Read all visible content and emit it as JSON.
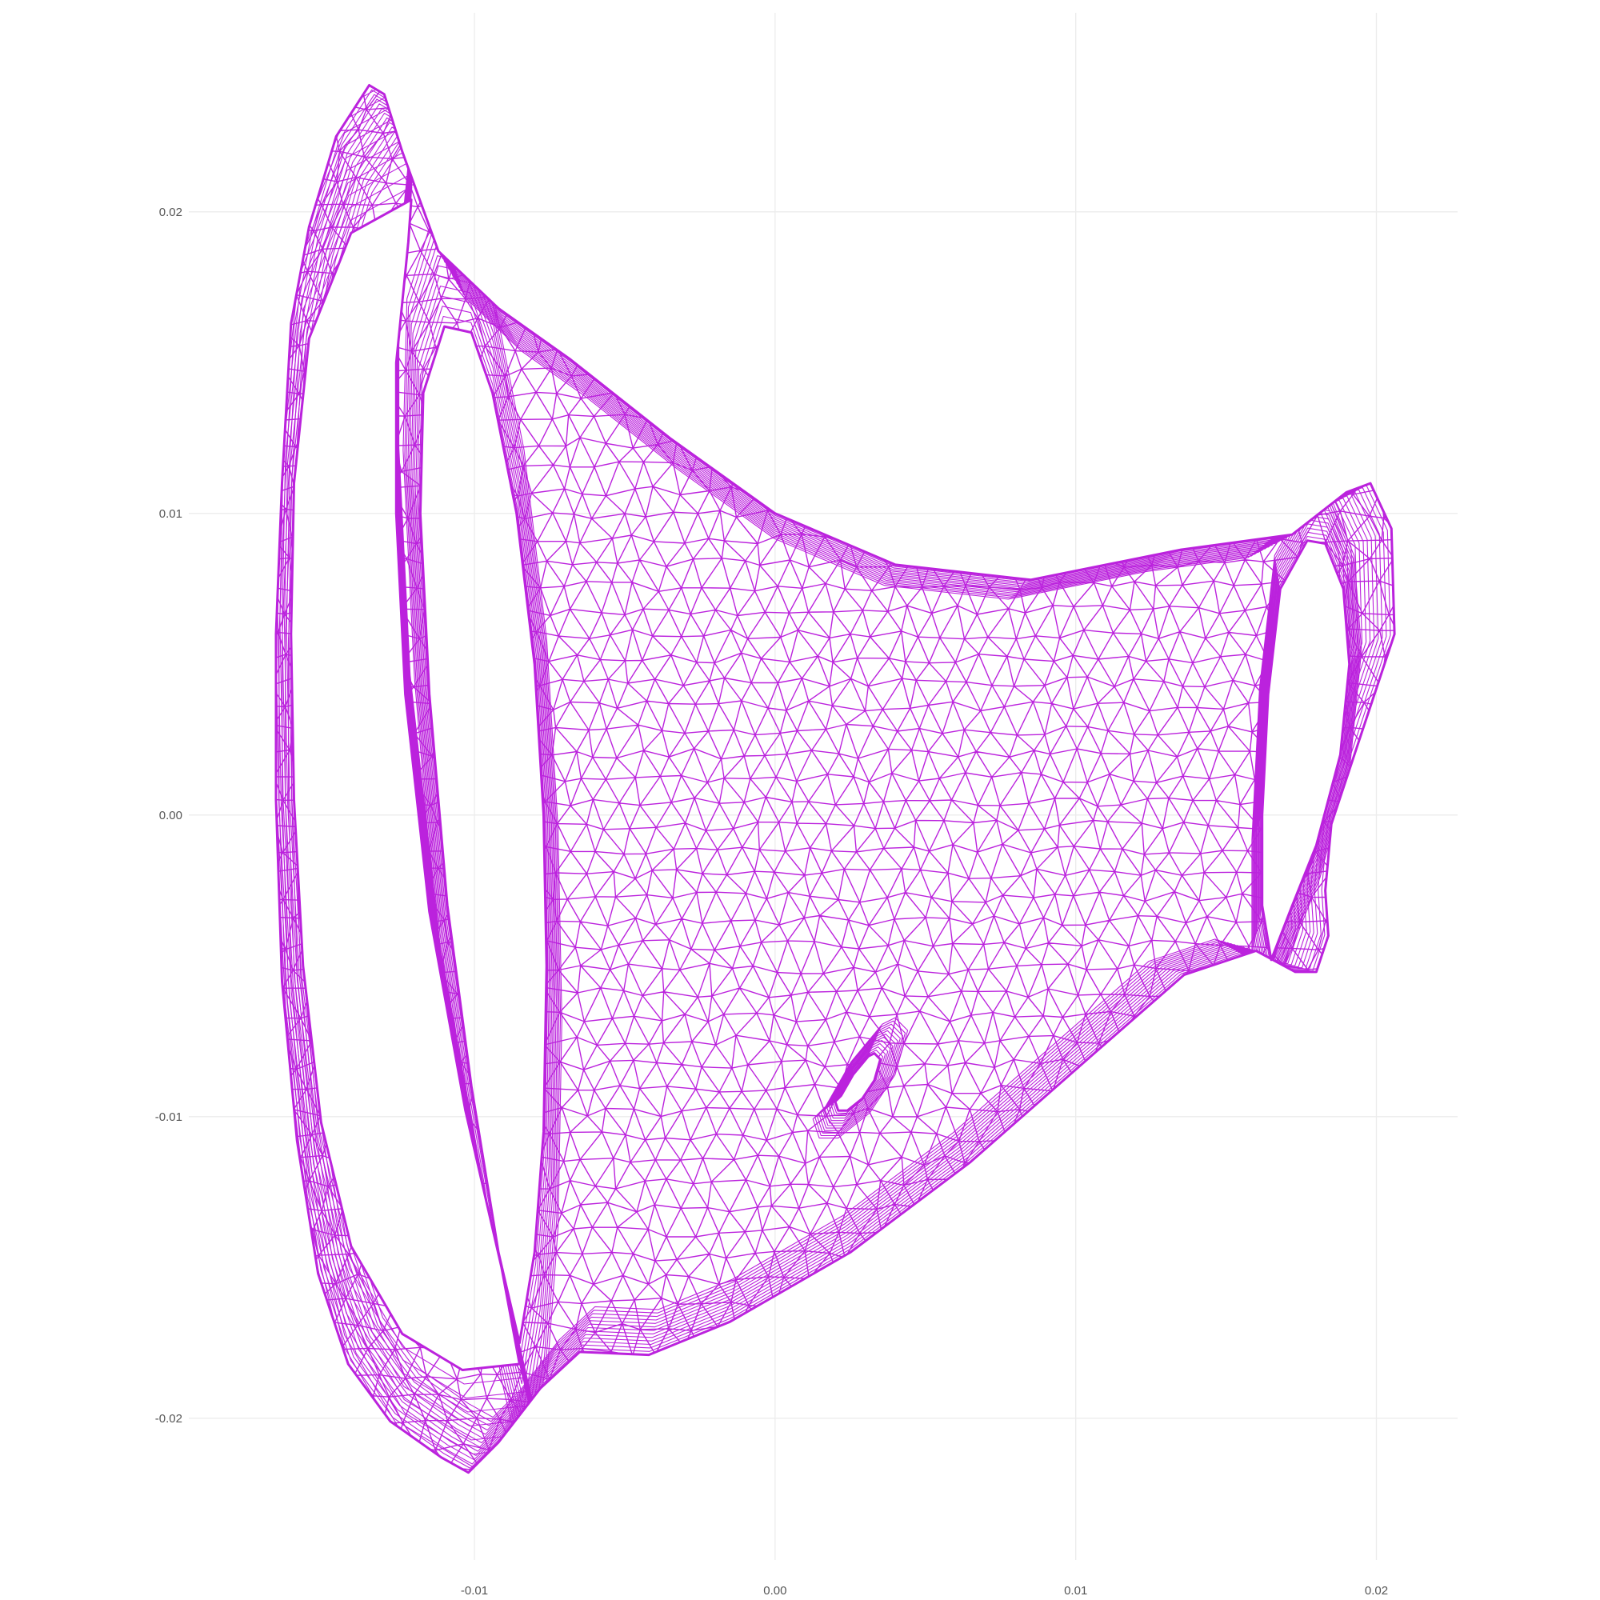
{
  "chart_data": {
    "type": "mesh",
    "title": "",
    "xlabel": "",
    "ylabel": "",
    "xlim": [
      -0.0195,
      0.0227
    ],
    "ylim": [
      -0.0247,
      0.0266
    ],
    "x_ticks": [
      -0.01,
      0.0,
      0.01,
      0.02
    ],
    "y_ticks": [
      -0.02,
      -0.01,
      0.0,
      0.01,
      0.02
    ],
    "x_tick_labels": [
      "-0.01",
      "0.00",
      "0.01",
      "0.02"
    ],
    "y_tick_labels": [
      "-0.02",
      "-0.01",
      "0.00",
      "0.01",
      "0.02"
    ],
    "grid": true,
    "legend": "none",
    "mesh_color": "#bb22dd",
    "grid_color": "#ececec",
    "outline": [
      [
        -0.0102,
        -0.0218
      ],
      [
        -0.0111,
        -0.0213
      ],
      [
        -0.0128,
        -0.0201
      ],
      [
        -0.0142,
        -0.0182
      ],
      [
        -0.0152,
        -0.0152
      ],
      [
        -0.0159,
        -0.0108
      ],
      [
        -0.0164,
        -0.0055
      ],
      [
        -0.0166,
        0.0005
      ],
      [
        -0.0166,
        0.006
      ],
      [
        -0.0164,
        0.011
      ],
      [
        -0.0161,
        0.0163
      ],
      [
        -0.0155,
        0.0195
      ],
      [
        -0.0146,
        0.0225
      ],
      [
        -0.0135,
        0.0242
      ],
      [
        -0.013,
        0.0239
      ],
      [
        -0.0124,
        0.022
      ],
      [
        -0.0112,
        0.0187
      ],
      [
        -0.0092,
        0.0168
      ],
      [
        -0.0068,
        0.0151
      ],
      [
        -0.0035,
        0.0125
      ],
      [
        0.0,
        0.01
      ],
      [
        0.004,
        0.0083
      ],
      [
        0.0085,
        0.0078
      ],
      [
        0.0135,
        0.0088
      ],
      [
        0.0172,
        0.0093
      ],
      [
        0.019,
        0.0107
      ],
      [
        0.0198,
        0.011
      ],
      [
        0.0205,
        0.0095
      ],
      [
        0.0206,
        0.006
      ],
      [
        0.0196,
        0.003
      ],
      [
        0.0185,
        -0.0003
      ],
      [
        0.0183,
        -0.0025
      ],
      [
        0.0184,
        -0.004
      ],
      [
        0.018,
        -0.0052
      ],
      [
        0.0173,
        -0.0052
      ],
      [
        0.016,
        -0.0045
      ],
      [
        0.0136,
        -0.0053
      ],
      [
        0.0105,
        -0.008
      ],
      [
        0.0065,
        -0.0115
      ],
      [
        0.0025,
        -0.0145
      ],
      [
        -0.0015,
        -0.0168
      ],
      [
        -0.0042,
        -0.0179
      ],
      [
        -0.0065,
        -0.0178
      ],
      [
        -0.0078,
        -0.019
      ],
      [
        -0.0092,
        -0.0208
      ],
      [
        -0.0102,
        -0.0218
      ]
    ],
    "holes": [
      [
        [
          -0.0121,
          0.0204
        ],
        [
          -0.0141,
          0.0193
        ],
        [
          -0.0155,
          0.0158
        ],
        [
          -0.016,
          0.011
        ],
        [
          -0.0161,
          0.006
        ],
        [
          -0.016,
          0.0005
        ],
        [
          -0.0157,
          -0.005
        ],
        [
          -0.0151,
          -0.0102
        ],
        [
          -0.0141,
          -0.0143
        ],
        [
          -0.0124,
          -0.0172
        ],
        [
          -0.0104,
          -0.0184
        ],
        [
          -0.0085,
          -0.0182
        ],
        [
          -0.0091,
          -0.015
        ],
        [
          -0.0103,
          -0.0098
        ],
        [
          -0.0115,
          -0.0032
        ],
        [
          -0.0123,
          0.004
        ],
        [
          -0.0126,
          0.01
        ],
        [
          -0.0126,
          0.015
        ],
        [
          -0.0122,
          0.019
        ],
        [
          -0.0121,
          0.0204
        ]
      ],
      [
        [
          -0.011,
          0.0162
        ],
        [
          -0.0101,
          0.016
        ],
        [
          -0.0094,
          0.014
        ],
        [
          -0.0086,
          0.01
        ],
        [
          -0.008,
          0.005
        ],
        [
          -0.0077,
          0.0
        ],
        [
          -0.0076,
          -0.005
        ],
        [
          -0.0077,
          -0.0105
        ],
        [
          -0.008,
          -0.0145
        ],
        [
          -0.0085,
          -0.0175
        ],
        [
          -0.0092,
          -0.0145
        ],
        [
          -0.0101,
          -0.009
        ],
        [
          -0.0109,
          -0.003
        ],
        [
          -0.0115,
          0.004
        ],
        [
          -0.0118,
          0.01
        ],
        [
          -0.0117,
          0.014
        ],
        [
          -0.011,
          0.0162
        ]
      ],
      [
        [
          0.0177,
          0.0091
        ],
        [
          0.0183,
          0.009
        ],
        [
          0.0189,
          0.0075
        ],
        [
          0.0191,
          0.005
        ],
        [
          0.0188,
          0.002
        ],
        [
          0.018,
          -0.001
        ],
        [
          0.0172,
          -0.003
        ],
        [
          0.0165,
          -0.0048
        ],
        [
          0.0162,
          -0.003
        ],
        [
          0.0162,
          0.0
        ],
        [
          0.0164,
          0.004
        ],
        [
          0.0168,
          0.0075
        ],
        [
          0.0177,
          0.0091
        ]
      ],
      [
        [
          0.002,
          -0.0095
        ],
        [
          0.0022,
          -0.0093
        ],
        [
          0.0026,
          -0.0086
        ],
        [
          0.0031,
          -0.008
        ],
        [
          0.0033,
          -0.0079
        ],
        [
          0.0035,
          -0.0081
        ],
        [
          0.0033,
          -0.0088
        ],
        [
          0.0029,
          -0.0094
        ],
        [
          0.0024,
          -0.0098
        ],
        [
          0.0021,
          -0.0098
        ],
        [
          0.002,
          -0.0095
        ]
      ]
    ]
  }
}
